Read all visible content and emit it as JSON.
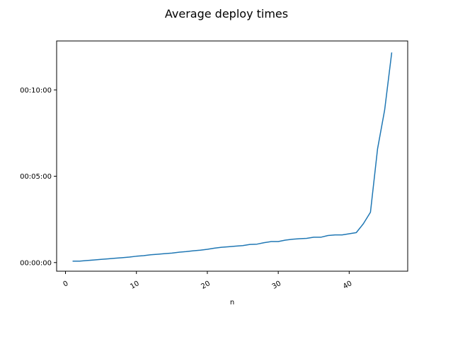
{
  "chart_data": {
    "type": "line",
    "title": "Average deploy times",
    "xlabel": "n",
    "ylabel": "",
    "xlim": [
      -1.25,
      48.25
    ],
    "ylim": [
      -30,
      770
    ],
    "xticks": [
      0,
      10,
      20,
      30,
      40
    ],
    "xtick_labels": [
      "0",
      "10",
      "20",
      "30",
      "40"
    ],
    "yticks": [
      0,
      300,
      600
    ],
    "ytick_labels": [
      "00:00:00",
      "00:05:00",
      "00:10:00"
    ],
    "grid": false,
    "line_color": "#1f77b4",
    "series": [
      {
        "x": [
          1,
          2,
          3,
          4,
          5,
          6,
          7,
          8,
          9,
          10,
          11,
          12,
          13,
          14,
          15,
          16,
          17,
          18,
          19,
          20,
          21,
          22,
          23,
          24,
          25,
          26,
          27,
          28,
          29,
          30,
          31,
          32,
          33,
          34,
          35,
          36,
          37,
          38,
          39,
          40,
          41,
          42,
          43,
          44,
          45,
          46
        ],
        "values": [
          5,
          5,
          7,
          9,
          11,
          13,
          15,
          17,
          19,
          22,
          24,
          27,
          29,
          31,
          33,
          36,
          38,
          41,
          43,
          46,
          50,
          53,
          55,
          57,
          59,
          63,
          64,
          69,
          73,
          73,
          78,
          81,
          83,
          84,
          88,
          88,
          94,
          96,
          96,
          100,
          104,
          135,
          175,
          395,
          530,
          730
        ]
      }
    ]
  }
}
